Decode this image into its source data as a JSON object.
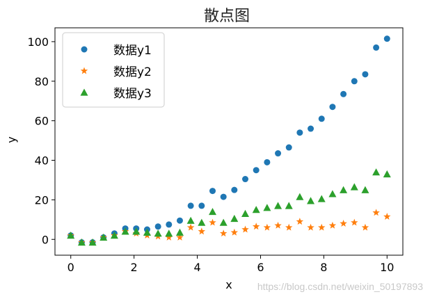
{
  "chart_data": {
    "type": "scatter",
    "title": "散点图",
    "xlabel": "x",
    "ylabel": "y",
    "xlim": [
      -0.5,
      10.5
    ],
    "ylim": [
      -8,
      107
    ],
    "xticks": [
      0,
      2,
      4,
      6,
      8,
      10
    ],
    "yticks": [
      0,
      20,
      40,
      60,
      80,
      100
    ],
    "grid": false,
    "legend_position": "top-left",
    "x": [
      0,
      0.345,
      0.69,
      1.034,
      1.379,
      1.724,
      2.069,
      2.414,
      2.759,
      3.103,
      3.448,
      3.793,
      4.138,
      4.483,
      4.828,
      5.172,
      5.517,
      5.862,
      6.207,
      6.552,
      6.897,
      7.241,
      7.586,
      7.931,
      8.276,
      8.621,
      8.966,
      9.31,
      9.655,
      10
    ],
    "series": [
      {
        "name": "数据y1",
        "marker": "circle",
        "color": "#1f77b4",
        "values": [
          2,
          -1.5,
          -1.5,
          1,
          3,
          5.5,
          5.5,
          5,
          6.5,
          7.5,
          9.5,
          17,
          17,
          24.5,
          21.5,
          25,
          30.5,
          35,
          39,
          43.5,
          46.5,
          54,
          56,
          61,
          67,
          73.5,
          80,
          83.5,
          97,
          101.5
        ]
      },
      {
        "name": "数据y2",
        "marker": "star",
        "color": "#ff7f0e",
        "values": [
          2,
          -1.5,
          -1.5,
          1,
          2,
          4,
          3,
          2,
          1.5,
          1,
          1,
          6,
          4,
          8.5,
          3,
          3.5,
          5,
          6.5,
          6,
          7,
          6,
          9,
          6,
          6,
          7,
          8,
          8.5,
          6,
          13.5,
          11.5
        ]
      },
      {
        "name": "数据y3",
        "marker": "triangle",
        "color": "#2ca02c",
        "values": [
          2,
          -1.5,
          -1.5,
          1,
          2,
          4,
          4,
          3.5,
          3,
          3,
          3.5,
          9.5,
          8.5,
          14,
          8.5,
          10.5,
          13,
          15,
          16,
          17,
          17,
          21.5,
          19.5,
          20.5,
          23,
          25,
          26.5,
          25,
          34,
          33
        ]
      }
    ]
  },
  "watermark": "https://blog.csdn.net/weixin_50197893"
}
